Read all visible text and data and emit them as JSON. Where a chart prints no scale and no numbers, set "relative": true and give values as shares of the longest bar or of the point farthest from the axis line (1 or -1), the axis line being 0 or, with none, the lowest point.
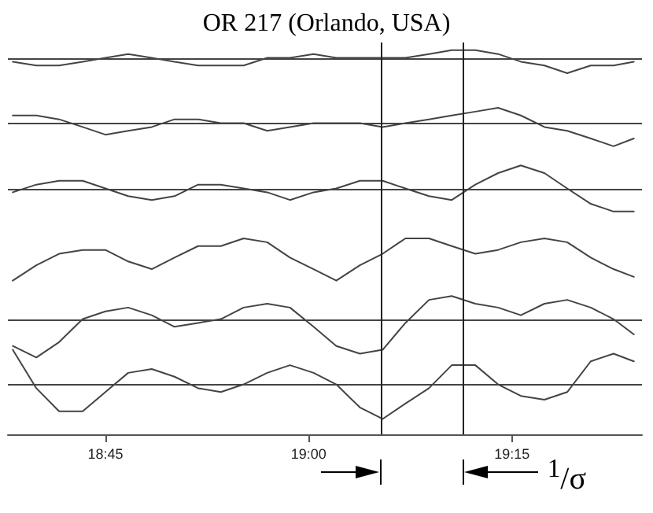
{
  "chart_data": {
    "type": "line",
    "title": "OR 217 (Orlando, USA)",
    "relative": true,
    "tick_labels": "x",
    "grid": false,
    "marker": "none",
    "line_style": "solid",
    "x": [
      18.636,
      18.665,
      18.693,
      18.722,
      18.75,
      18.778,
      18.807,
      18.835,
      18.864,
      18.892,
      18.92,
      18.949,
      18.977,
      19.006,
      19.034,
      19.063,
      19.091,
      19.119,
      19.148,
      19.176,
      19.205,
      19.233,
      19.261,
      19.29,
      19.318,
      19.347,
      19.375,
      19.4
    ],
    "xlim": [
      18.63,
      19.41
    ],
    "xticks": [
      {
        "value": 18.75,
        "label": "18:45"
      },
      {
        "value": 19,
        "label": "19:00"
      },
      {
        "value": 19.25,
        "label": "19:15"
      }
    ],
    "series": [
      {
        "color": "#444444",
        "values": [
          0.97,
          0.96,
          0.96,
          0.97,
          0.98,
          0.99,
          0.98,
          0.97,
          0.96,
          0.96,
          0.96,
          0.98,
          0.98,
          0.99,
          0.98,
          0.98,
          0.98,
          0.98,
          0.99,
          1.0,
          1.0,
          0.99,
          0.97,
          0.96,
          0.94,
          0.96,
          0.96,
          0.97
        ]
      },
      {
        "color": "#444444",
        "values": [
          0.83,
          0.83,
          0.82,
          0.8,
          0.78,
          0.79,
          0.8,
          0.82,
          0.82,
          0.81,
          0.81,
          0.79,
          0.8,
          0.81,
          0.81,
          0.81,
          0.8,
          0.81,
          0.82,
          0.83,
          0.84,
          0.85,
          0.83,
          0.8,
          0.79,
          0.77,
          0.75,
          0.77
        ]
      },
      {
        "color": "#444444",
        "values": [
          0.63,
          0.65,
          0.66,
          0.66,
          0.64,
          0.62,
          0.61,
          0.62,
          0.65,
          0.65,
          0.64,
          0.63,
          0.61,
          0.63,
          0.64,
          0.66,
          0.66,
          0.64,
          0.62,
          0.61,
          0.65,
          0.68,
          0.7,
          0.68,
          0.64,
          0.6,
          0.58,
          0.58
        ]
      },
      {
        "color": "#444444",
        "values": [
          0.4,
          0.44,
          0.47,
          0.48,
          0.48,
          0.45,
          0.43,
          0.46,
          0.49,
          0.49,
          0.51,
          0.5,
          0.46,
          0.43,
          0.4,
          0.44,
          0.47,
          0.51,
          0.51,
          0.49,
          0.47,
          0.48,
          0.5,
          0.51,
          0.5,
          0.46,
          0.43,
          0.41
        ]
      },
      {
        "color": "#444444",
        "values": [
          0.23,
          0.2,
          0.24,
          0.3,
          0.32,
          0.33,
          0.31,
          0.28,
          0.29,
          0.3,
          0.33,
          0.34,
          0.33,
          0.28,
          0.23,
          0.21,
          0.22,
          0.29,
          0.35,
          0.36,
          0.34,
          0.33,
          0.31,
          0.34,
          0.35,
          0.33,
          0.3,
          0.26
        ]
      },
      {
        "color": "#444444",
        "values": [
          0.22,
          0.12,
          0.06,
          0.06,
          0.11,
          0.16,
          0.17,
          0.15,
          0.12,
          0.11,
          0.13,
          0.16,
          0.18,
          0.16,
          0.13,
          0.07,
          0.04,
          0.08,
          0.12,
          0.18,
          0.18,
          0.13,
          0.1,
          0.09,
          0.11,
          0.19,
          0.21,
          0.19
        ]
      }
    ],
    "ref_lines": [
      {
        "axis": "y",
        "value": 0.98,
        "color": "#444444"
      },
      {
        "axis": "y",
        "value": 0.81,
        "color": "#444444"
      },
      {
        "axis": "y",
        "value": 0.64,
        "color": "#444444"
      },
      {
        "axis": "y",
        "value": 0.3,
        "color": "#444444"
      },
      {
        "axis": "y",
        "value": 0.13,
        "color": "#444444"
      },
      {
        "axis": "x",
        "value": 19.089,
        "color": "#222222"
      },
      {
        "axis": "x",
        "value": 19.189,
        "color": "#222222"
      }
    ],
    "annotations": [
      "$^{1}$/σ"
    ]
  }
}
